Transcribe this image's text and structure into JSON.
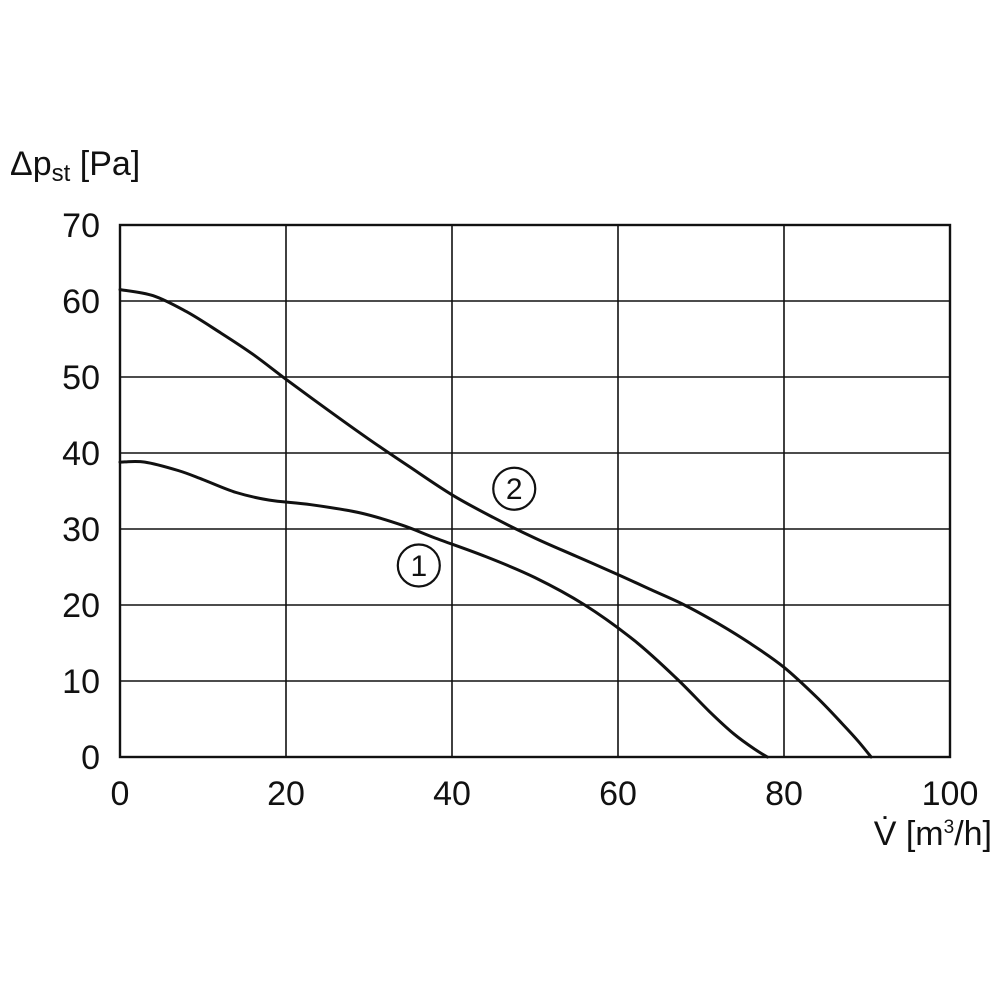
{
  "chart_data": {
    "type": "line",
    "title": "",
    "ylabel": {
      "main": "Δp",
      "sub": "st",
      "unit": " [Pa]"
    },
    "xlabel": {
      "main": "V̇ [m",
      "sup": "3",
      "unit": "/h]"
    },
    "xlim": [
      0,
      100
    ],
    "ylim": [
      0,
      70
    ],
    "xticks": [
      0,
      20,
      40,
      60,
      80,
      100
    ],
    "yticks": [
      0,
      10,
      20,
      30,
      40,
      50,
      60,
      70
    ],
    "grid": true,
    "legend": "none",
    "series": [
      {
        "label": "1",
        "x": [
          0,
          3,
          7,
          10,
          14,
          18,
          23,
          29,
          34,
          38,
          44,
          50,
          56,
          62,
          67,
          71,
          74,
          76.5,
          78
        ],
        "y": [
          38.8,
          38.8,
          37.7,
          36.5,
          34.8,
          33.8,
          33.2,
          32.1,
          30.5,
          28.8,
          26.4,
          23.6,
          20.0,
          15.3,
          10.4,
          6.0,
          3.0,
          1.0,
          0
        ]
      },
      {
        "label": "2",
        "x": [
          0,
          4,
          8,
          12,
          16,
          20,
          25,
          30,
          35,
          40,
          45,
          50,
          55,
          60,
          64,
          68,
          72,
          76,
          80,
          84,
          87,
          89,
          90.5
        ],
        "y": [
          61.5,
          60.7,
          58.6,
          55.9,
          53.0,
          49.7,
          45.7,
          41.8,
          38.1,
          34.5,
          31.5,
          28.8,
          26.4,
          24.0,
          22.0,
          20.0,
          17.6,
          14.9,
          11.8,
          7.8,
          4.4,
          2.0,
          0
        ]
      }
    ],
    "annotations": [
      {
        "text": "1",
        "x": 36,
        "y": 25.2
      },
      {
        "text": "2",
        "x": 47.5,
        "y": 35.3
      }
    ]
  }
}
